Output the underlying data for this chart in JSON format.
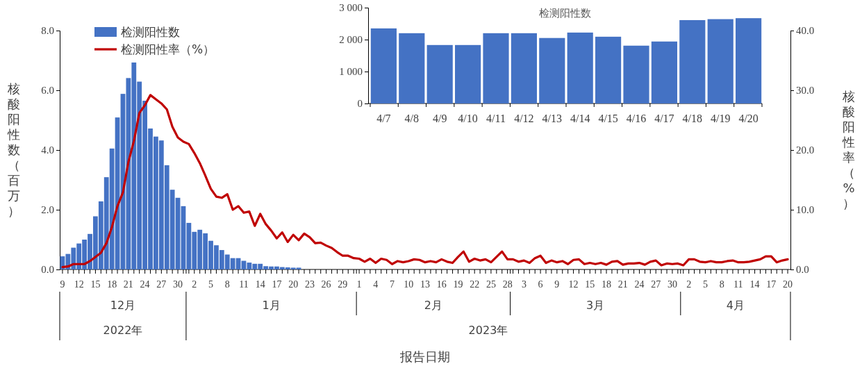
{
  "chart_data": [
    {
      "type": "bar",
      "xlabel": "报告日期",
      "ylabel": "核酸阳性数（百万）",
      "y2label": "核酸阳性率（%）",
      "legend": "top left",
      "marker": "none",
      "line_style": "solid",
      "xlim": [
        "2022-12-08T12:00",
        "2023-04-20T12:00"
      ],
      "ylim": [
        0,
        8
      ],
      "yticks": [
        {
          "value": 0,
          "label": "0.0"
        },
        {
          "value": 2,
          "label": "2.0"
        },
        {
          "value": 4,
          "label": "4.0"
        },
        {
          "value": 6,
          "label": "6.0"
        },
        {
          "value": 8,
          "label": "8.0"
        }
      ],
      "y2lim": [
        0,
        40
      ],
      "y2ticks": [
        {
          "value": 0,
          "label": "0.0"
        },
        {
          "value": 10,
          "label": "10.0"
        },
        {
          "value": 20,
          "label": "20.0"
        },
        {
          "value": 30,
          "label": "30.0"
        },
        {
          "value": 40,
          "label": "40.0"
        }
      ],
      "xticks": [
        {
          "value": "2022-12-09",
          "label": "9"
        },
        {
          "value": "2022-12-10",
          "label": null
        },
        {
          "value": "2022-12-11",
          "label": null
        },
        {
          "value": "2022-12-12",
          "label": "12"
        },
        {
          "value": "2022-12-13",
          "label": null
        },
        {
          "value": "2022-12-14",
          "label": null
        },
        {
          "value": "2022-12-15",
          "label": "15"
        },
        {
          "value": "2022-12-16",
          "label": null
        },
        {
          "value": "2022-12-17",
          "label": null
        },
        {
          "value": "2022-12-18",
          "label": "18"
        },
        {
          "value": "2022-12-19",
          "label": null
        },
        {
          "value": "2022-12-20",
          "label": null
        },
        {
          "value": "2022-12-21",
          "label": "21"
        },
        {
          "value": "2022-12-22",
          "label": null
        },
        {
          "value": "2022-12-23",
          "label": null
        },
        {
          "value": "2022-12-24",
          "label": "24"
        },
        {
          "value": "2022-12-25",
          "label": null
        },
        {
          "value": "2022-12-26",
          "label": null
        },
        {
          "value": "2022-12-27",
          "label": "27"
        },
        {
          "value": "2022-12-28",
          "label": null
        },
        {
          "value": "2022-12-29",
          "label": null
        },
        {
          "value": "2022-12-30",
          "label": "30"
        },
        {
          "value": "2022-12-31",
          "label": null
        },
        {
          "value": "2023-01-01",
          "label": null
        },
        {
          "value": "2023-01-02",
          "label": "2"
        },
        {
          "value": "2023-01-03",
          "label": null
        },
        {
          "value": "2023-01-04",
          "label": null
        },
        {
          "value": "2023-01-05",
          "label": "5"
        },
        {
          "value": "2023-01-06",
          "label": null
        },
        {
          "value": "2023-01-07",
          "label": null
        },
        {
          "value": "2023-01-08",
          "label": "8"
        },
        {
          "value": "2023-01-09",
          "label": null
        },
        {
          "value": "2023-01-10",
          "label": null
        },
        {
          "value": "2023-01-11",
          "label": "11"
        },
        {
          "value": "2023-01-12",
          "label": null
        },
        {
          "value": "2023-01-13",
          "label": null
        },
        {
          "value": "2023-01-14",
          "label": "14"
        },
        {
          "value": "2023-01-15",
          "label": null
        },
        {
          "value": "2023-01-16",
          "label": null
        },
        {
          "value": "2023-01-17",
          "label": "17"
        },
        {
          "value": "2023-01-18",
          "label": null
        },
        {
          "value": "2023-01-19",
          "label": null
        },
        {
          "value": "2023-01-20",
          "label": "20"
        },
        {
          "value": "2023-01-21",
          "label": null
        },
        {
          "value": "2023-01-22",
          "label": null
        },
        {
          "value": "2023-01-23",
          "label": "23"
        },
        {
          "value": "2023-01-24",
          "label": null
        },
        {
          "value": "2023-01-25",
          "label": null
        },
        {
          "value": "2023-01-26",
          "label": "26"
        },
        {
          "value": "2023-01-27",
          "label": null
        },
        {
          "value": "2023-01-28",
          "label": null
        },
        {
          "value": "2023-01-29",
          "label": "29"
        },
        {
          "value": "2023-01-30",
          "label": null
        },
        {
          "value": "2023-01-31",
          "label": null
        },
        {
          "value": "2023-02-01",
          "label": "1"
        },
        {
          "value": "2023-02-02",
          "label": null
        },
        {
          "value": "2023-02-03",
          "label": null
        },
        {
          "value": "2023-02-04",
          "label": "4"
        },
        {
          "value": "2023-02-05",
          "label": null
        },
        {
          "value": "2023-02-06",
          "label": null
        },
        {
          "value": "2023-02-07",
          "label": "7"
        },
        {
          "value": "2023-02-08",
          "label": null
        },
        {
          "value": "2023-02-09",
          "label": null
        },
        {
          "value": "2023-02-10",
          "label": "10"
        },
        {
          "value": "2023-02-11",
          "label": null
        },
        {
          "value": "2023-02-12",
          "label": null
        },
        {
          "value": "2023-02-13",
          "label": "13"
        },
        {
          "value": "2023-02-14",
          "label": null
        },
        {
          "value": "2023-02-15",
          "label": null
        },
        {
          "value": "2023-02-16",
          "label": "16"
        },
        {
          "value": "2023-02-17",
          "label": null
        },
        {
          "value": "2023-02-18",
          "label": null
        },
        {
          "value": "2023-02-19",
          "label": "19"
        },
        {
          "value": "2023-02-20",
          "label": null
        },
        {
          "value": "2023-02-21",
          "label": null
        },
        {
          "value": "2023-02-22",
          "label": "22"
        },
        {
          "value": "2023-02-23",
          "label": null
        },
        {
          "value": "2023-02-24",
          "label": null
        },
        {
          "value": "2023-02-25",
          "label": "25"
        },
        {
          "value": "2023-02-26",
          "label": null
        },
        {
          "value": "2023-02-27",
          "label": null
        },
        {
          "value": "2023-02-28",
          "label": "28"
        },
        {
          "value": "2023-03-01",
          "label": null
        },
        {
          "value": "2023-03-02",
          "label": null
        },
        {
          "value": "2023-03-03",
          "label": "3"
        },
        {
          "value": "2023-03-04",
          "label": null
        },
        {
          "value": "2023-03-05",
          "label": null
        },
        {
          "value": "2023-03-06",
          "label": "6"
        },
        {
          "value": "2023-03-07",
          "label": null
        },
        {
          "value": "2023-03-08",
          "label": null
        },
        {
          "value": "2023-03-09",
          "label": "9"
        },
        {
          "value": "2023-03-10",
          "label": null
        },
        {
          "value": "2023-03-11",
          "label": null
        },
        {
          "value": "2023-03-12",
          "label": "12"
        },
        {
          "value": "2023-03-13",
          "label": null
        },
        {
          "value": "2023-03-14",
          "label": null
        },
        {
          "value": "2023-03-15",
          "label": "15"
        },
        {
          "value": "2023-03-16",
          "label": null
        },
        {
          "value": "2023-03-17",
          "label": null
        },
        {
          "value": "2023-03-18",
          "label": "18"
        },
        {
          "value": "2023-03-19",
          "label": null
        },
        {
          "value": "2023-03-20",
          "label": null
        },
        {
          "value": "2023-03-21",
          "label": "21"
        },
        {
          "value": "2023-03-22",
          "label": null
        },
        {
          "value": "2023-03-23",
          "label": null
        },
        {
          "value": "2023-03-24",
          "label": "24"
        },
        {
          "value": "2023-03-25",
          "label": null
        },
        {
          "value": "2023-03-26",
          "label": null
        },
        {
          "value": "2023-03-27",
          "label": "27"
        },
        {
          "value": "2023-03-28",
          "label": null
        },
        {
          "value": "2023-03-29",
          "label": null
        },
        {
          "value": "2023-03-30",
          "label": "30"
        },
        {
          "value": "2023-03-31",
          "label": null
        },
        {
          "value": "2023-04-01",
          "label": null
        },
        {
          "value": "2023-04-02",
          "label": "2"
        },
        {
          "value": "2023-04-03",
          "label": null
        },
        {
          "value": "2023-04-04",
          "label": null
        },
        {
          "value": "2023-04-05",
          "label": "5"
        },
        {
          "value": "2023-04-06",
          "label": null
        },
        {
          "value": "2023-04-07",
          "label": null
        },
        {
          "value": "2023-04-08",
          "label": "8"
        },
        {
          "value": "2023-04-09",
          "label": null
        },
        {
          "value": "2023-04-10",
          "label": null
        },
        {
          "value": "2023-04-11",
          "label": "11"
        },
        {
          "value": "2023-04-12",
          "label": null
        },
        {
          "value": "2023-04-13",
          "label": null
        },
        {
          "value": "2023-04-14",
          "label": "14"
        },
        {
          "value": "2023-04-15",
          "label": null
        },
        {
          "value": "2023-04-16",
          "label": null
        },
        {
          "value": "2023-04-17",
          "label": "17"
        },
        {
          "value": "2023-04-18",
          "label": null
        },
        {
          "value": "2023-04-19",
          "label": null
        },
        {
          "value": "2023-04-20",
          "label": "20"
        }
      ],
      "annotations": [
        "12月",
        "1月",
        "2月",
        "3月",
        "4月",
        "2022年",
        "2023年"
      ],
      "series": [
        {
          "type": "bar",
          "name": "检测阳性数",
          "color": "#4472c4",
          "x": [
            "2022-12-09",
            "2022-12-10",
            "2022-12-11",
            "2022-12-12",
            "2022-12-13",
            "2022-12-14",
            "2022-12-15",
            "2022-12-16",
            "2022-12-17",
            "2022-12-18",
            "2022-12-19",
            "2022-12-20",
            "2022-12-21",
            "2022-12-22",
            "2022-12-23",
            "2022-12-24",
            "2022-12-25",
            "2022-12-26",
            "2022-12-27",
            "2022-12-28",
            "2022-12-29",
            "2022-12-30",
            "2022-12-31",
            "2023-01-01",
            "2023-01-02",
            "2023-01-03",
            "2023-01-04",
            "2023-01-05",
            "2023-01-06",
            "2023-01-07",
            "2023-01-08",
            "2023-01-09",
            "2023-01-10",
            "2023-01-11",
            "2023-01-12",
            "2023-01-13",
            "2023-01-14",
            "2023-01-15",
            "2023-01-16",
            "2023-01-17",
            "2023-01-18",
            "2023-01-19",
            "2023-01-20",
            "2023-01-21"
          ],
          "values": [
            0.44,
            0.52,
            0.73,
            0.87,
            1.0,
            1.19,
            1.78,
            2.28,
            3.09,
            4.05,
            5.09,
            5.88,
            6.41,
            6.93,
            6.29,
            5.65,
            4.72,
            4.45,
            4.32,
            3.49,
            2.67,
            2.4,
            2.12,
            1.56,
            1.26,
            1.33,
            1.21,
            0.96,
            0.81,
            0.65,
            0.5,
            0.38,
            0.38,
            0.29,
            0.23,
            0.19,
            0.19,
            0.11,
            0.1,
            0.1,
            0.08,
            0.07,
            0.06,
            0.06
          ]
        },
        {
          "type": "line",
          "axis": "y2",
          "name": "检测阳性率（%）",
          "color": "#c00000",
          "x": [
            "2022-12-09",
            "2022-12-10",
            "2022-12-11",
            "2022-12-12",
            "2022-12-13",
            "2022-12-14",
            "2022-12-15",
            "2022-12-16",
            "2022-12-17",
            "2022-12-18",
            "2022-12-19",
            "2022-12-20",
            "2022-12-21",
            "2022-12-22",
            "2022-12-23",
            "2022-12-24",
            "2022-12-25",
            "2022-12-26",
            "2022-12-27",
            "2022-12-28",
            "2022-12-29",
            "2022-12-30",
            "2022-12-31",
            "2023-01-01",
            "2023-01-02",
            "2023-01-03",
            "2023-01-04",
            "2023-01-05",
            "2023-01-06",
            "2023-01-07",
            "2023-01-08",
            "2023-01-09",
            "2023-01-10",
            "2023-01-11",
            "2023-01-12",
            "2023-01-13",
            "2023-01-14",
            "2023-01-15",
            "2023-01-16",
            "2023-01-17",
            "2023-01-18",
            "2023-01-19",
            "2023-01-20",
            "2023-01-21",
            "2023-01-22",
            "2023-01-23",
            "2023-01-24",
            "2023-01-25",
            "2023-01-26",
            "2023-01-27",
            "2023-01-28",
            "2023-01-29",
            "2023-01-30",
            "2023-01-31",
            "2023-02-01",
            "2023-02-02",
            "2023-02-03",
            "2023-02-04",
            "2023-02-05",
            "2023-02-06",
            "2023-02-07",
            "2023-02-08",
            "2023-02-09",
            "2023-02-10",
            "2023-02-11",
            "2023-02-12",
            "2023-02-13",
            "2023-02-14",
            "2023-02-15",
            "2023-02-16",
            "2023-02-17",
            "2023-02-18",
            "2023-02-19",
            "2023-02-20",
            "2023-02-21",
            "2023-02-22",
            "2023-02-23",
            "2023-02-24",
            "2023-02-25",
            "2023-02-26",
            "2023-02-27",
            "2023-02-28",
            "2023-03-01",
            "2023-03-02",
            "2023-03-03",
            "2023-03-04",
            "2023-03-05",
            "2023-03-06",
            "2023-03-07",
            "2023-03-08",
            "2023-03-09",
            "2023-03-10",
            "2023-03-11",
            "2023-03-12",
            "2023-03-13",
            "2023-03-14",
            "2023-03-15",
            "2023-03-16",
            "2023-03-17",
            "2023-03-18",
            "2023-03-19",
            "2023-03-20",
            "2023-03-21",
            "2023-03-22",
            "2023-03-23",
            "2023-03-24",
            "2023-03-25",
            "2023-03-26",
            "2023-03-27",
            "2023-03-28",
            "2023-03-29",
            "2023-03-30",
            "2023-03-31",
            "2023-04-01",
            "2023-04-02",
            "2023-04-03",
            "2023-04-04",
            "2023-04-05",
            "2023-04-06",
            "2023-04-07",
            "2023-04-08",
            "2023-04-09",
            "2023-04-10",
            "2023-04-11",
            "2023-04-12",
            "2023-04-13",
            "2023-04-14",
            "2023-04-15",
            "2023-04-16",
            "2023-04-17",
            "2023-04-18",
            "2023-04-19",
            "2023-04-20"
          ],
          "values": [
            0.4,
            0.5,
            0.9,
            0.9,
            0.9,
            1.4,
            2.1,
            2.8,
            4.4,
            7.1,
            10.6,
            12.9,
            18.0,
            21.5,
            26.2,
            27.5,
            29.2,
            28.5,
            27.8,
            26.8,
            23.9,
            22.1,
            21.4,
            21.0,
            19.5,
            17.8,
            15.7,
            13.5,
            12.2,
            12.0,
            12.6,
            10.0,
            10.6,
            9.5,
            9.7,
            7.3,
            9.3,
            7.6,
            6.5,
            5.2,
            6.2,
            4.6,
            5.8,
            4.9,
            6.0,
            5.4,
            4.4,
            4.5,
            4.0,
            3.6,
            2.9,
            2.3,
            2.3,
            1.9,
            1.8,
            1.3,
            1.8,
            1.1,
            1.8,
            1.6,
            0.9,
            1.4,
            1.2,
            1.4,
            1.7,
            1.6,
            1.2,
            1.4,
            1.2,
            1.7,
            1.3,
            1.1,
            2.1,
            3.0,
            1.3,
            1.8,
            1.5,
            1.7,
            1.2,
            2.1,
            3.0,
            1.7,
            1.7,
            1.3,
            1.5,
            1.1,
            1.9,
            2.3,
            1.1,
            1.5,
            1.2,
            1.4,
            0.9,
            1.6,
            1.7,
            0.9,
            1.1,
            0.9,
            1.1,
            0.8,
            1.3,
            1.4,
            0.8,
            1.0,
            1.0,
            1.1,
            0.8,
            1.3,
            1.5,
            0.7,
            1.0,
            0.9,
            1.0,
            0.7,
            1.7,
            1.7,
            1.3,
            1.2,
            1.4,
            1.2,
            1.2,
            1.4,
            1.5,
            1.2,
            1.2,
            1.3,
            1.5,
            1.7,
            2.2,
            2.2,
            1.2,
            1.5,
            1.7
          ]
        }
      ]
    },
    {
      "type": "bar",
      "title": "检测阳性数",
      "color": "#4472c4",
      "categories": [
        "4/7",
        "4/8",
        "4/9",
        "4/10",
        "4/11",
        "4/12",
        "4/13",
        "4/14",
        "4/15",
        "4/16",
        "4/17",
        "4/18",
        "4/19",
        "4/20"
      ],
      "values": [
        2350,
        2200,
        1830,
        1830,
        2200,
        2200,
        2050,
        2220,
        2090,
        1810,
        1940,
        2610,
        2640,
        2670
      ],
      "ylim": [
        0,
        3000
      ],
      "yticks": [
        0,
        {
          "value": 1000,
          "label": "1 000"
        },
        {
          "value": 2000,
          "label": "2 000"
        },
        {
          "value": 3000,
          "label": "3 000"
        }
      ]
    }
  ]
}
